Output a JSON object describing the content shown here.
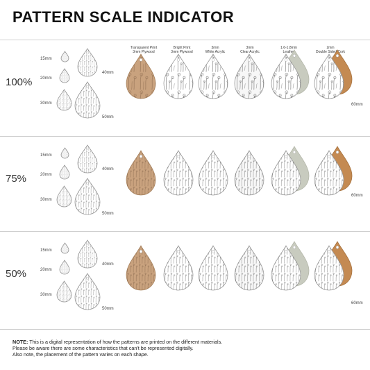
{
  "title": "PATTERN SCALE INDICATOR",
  "materials": [
    {
      "line1": "Transparent Print",
      "line2": "3mm Plywood",
      "style": "plywood"
    },
    {
      "line1": "Bright Print",
      "line2": "3mm Plywood",
      "style": "bright"
    },
    {
      "line1": "3mm",
      "line2": "White Acrylic",
      "style": "white"
    },
    {
      "line1": "3mm",
      "line2": "Clear Acrylic",
      "style": "clear"
    },
    {
      "line1": "1.6-1.8mm",
      "line2": "Leather",
      "style": "leather"
    },
    {
      "line1": "2mm",
      "line2": "Double Sided Cork",
      "style": "cork"
    }
  ],
  "sections": [
    {
      "scale": "100%",
      "sizes": [
        "15mm",
        "20mm",
        "30mm"
      ],
      "large_sizes": [
        "40mm",
        "50mm"
      ],
      "product_size": "60mm"
    },
    {
      "scale": "75%",
      "sizes": [
        "15mm",
        "20mm",
        "30mm"
      ],
      "large_sizes": [
        "40mm",
        "50mm"
      ],
      "product_size": "60mm"
    },
    {
      "scale": "50%",
      "sizes": [
        "15mm",
        "20mm",
        "30mm"
      ],
      "large_sizes": [
        "40mm",
        "50mm"
      ],
      "product_size": "60mm"
    }
  ],
  "note": {
    "label": "NOTE:",
    "line1": " This is a digital representation of how the patterns are printed on the different materials.",
    "line2": "Please be aware there are some characteristics that can't be represented digitally.",
    "line3": "Also note, the placement of the pattern varies on each shape."
  },
  "colors": {
    "plywood": "#c9a27e",
    "plywood_dark": "#8a6a4e",
    "leather_back": "#c8cbbf",
    "cork": "#c48a52",
    "line": "#cfcfcf"
  }
}
